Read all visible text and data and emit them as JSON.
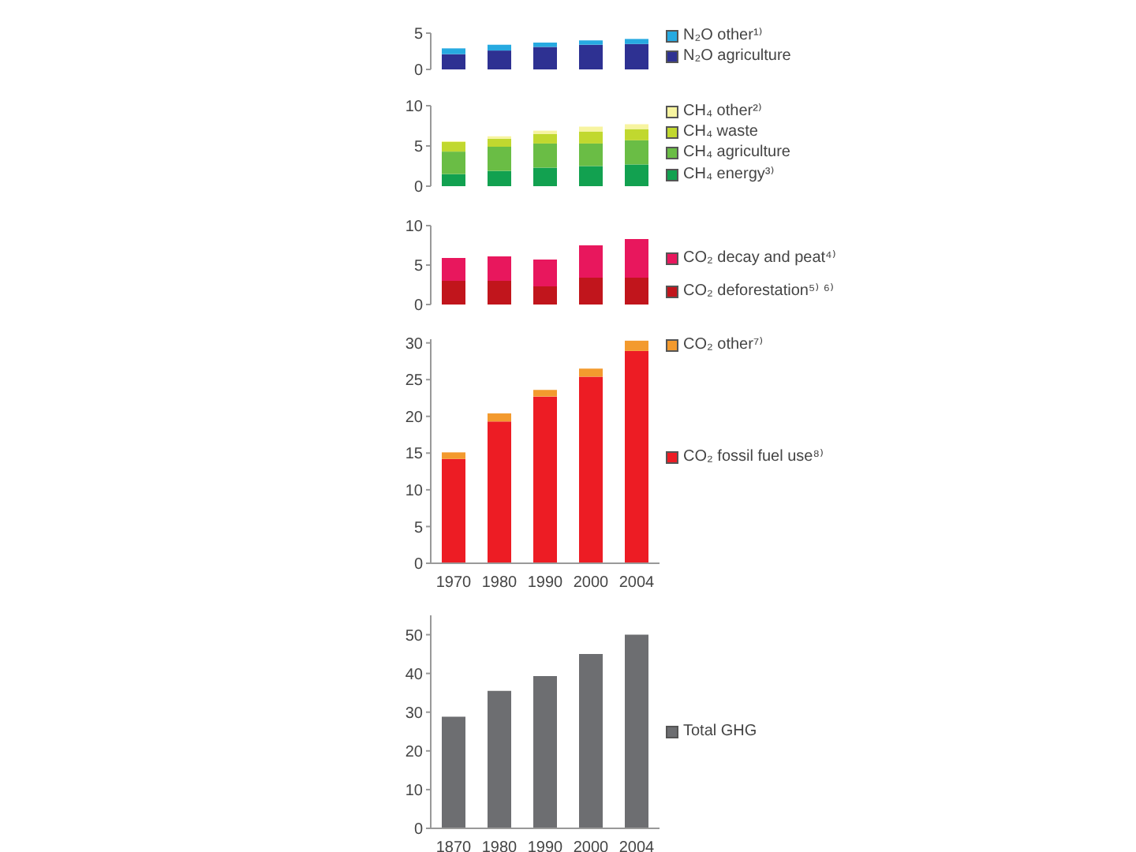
{
  "chart_data": [
    {
      "type": "bar",
      "stacked": true,
      "categories": [
        "1970",
        "1980",
        "1990",
        "2000",
        "2004"
      ],
      "tick_labels": "y",
      "ylim": [
        0,
        5
      ],
      "yticks": [
        0,
        5
      ],
      "legend": "right",
      "series": [
        {
          "name": "N₂O agriculture",
          "color": "#2e3192",
          "values": [
            2.1,
            2.6,
            3.1,
            3.4,
            3.5
          ]
        },
        {
          "name": "N₂O other¹⁾",
          "color": "#27aae1",
          "values": [
            0.8,
            0.8,
            0.6,
            0.6,
            0.7
          ]
        }
      ]
    },
    {
      "type": "bar",
      "stacked": true,
      "categories": [
        "1970",
        "1980",
        "1990",
        "2000",
        "2004"
      ],
      "tick_labels": "y",
      "ylim": [
        0,
        10
      ],
      "yticks": [
        0,
        5,
        10
      ],
      "legend": "right",
      "series": [
        {
          "name": "CH₄ energy³⁾",
          "color": "#12a150",
          "values": [
            1.5,
            1.9,
            2.3,
            2.5,
            2.7
          ]
        },
        {
          "name": "CH₄ agriculture",
          "color": "#6abd45",
          "values": [
            2.8,
            3.0,
            3.0,
            2.8,
            3.0
          ]
        },
        {
          "name": "CH₄ waste",
          "color": "#c1d82f",
          "values": [
            1.2,
            1.0,
            1.2,
            1.5,
            1.4
          ]
        },
        {
          "name": "CH₄ other²⁾",
          "color": "#f7f4a0",
          "values": [
            0.1,
            0.3,
            0.4,
            0.6,
            0.6
          ]
        }
      ]
    },
    {
      "type": "bar",
      "stacked": true,
      "categories": [
        "1970",
        "1980",
        "1990",
        "2000",
        "2004"
      ],
      "tick_labels": "y",
      "ylim": [
        0,
        10
      ],
      "yticks": [
        0,
        5,
        10
      ],
      "legend": "right",
      "series": [
        {
          "name": "CO₂ deforestation⁵⁾ ⁶⁾",
          "color": "#c1151c",
          "values": [
            3.0,
            3.0,
            2.3,
            3.4,
            3.4
          ]
        },
        {
          "name": "CO₂ decay and peat⁴⁾",
          "color": "#e8175d",
          "values": [
            2.9,
            3.1,
            3.4,
            4.1,
            4.9
          ]
        }
      ]
    },
    {
      "type": "bar",
      "stacked": true,
      "categories": [
        "1970",
        "1980",
        "1990",
        "2000",
        "2004"
      ],
      "ylim": [
        0,
        30.5
      ],
      "yticks": [
        0,
        5,
        10,
        15,
        20,
        25,
        30
      ],
      "legend": "right",
      "series": [
        {
          "name": "CO₂ fossil fuel use⁸⁾",
          "color": "#ed1c24",
          "values": [
            14.2,
            19.3,
            22.7,
            25.4,
            28.9
          ]
        },
        {
          "name": "CO₂ other⁷⁾",
          "color": "#f39a2e",
          "values": [
            0.9,
            1.1,
            0.9,
            1.1,
            1.4
          ]
        }
      ]
    },
    {
      "type": "bar",
      "categories": [
        "1870",
        "1980",
        "1990",
        "2000",
        "2004"
      ],
      "ylim": [
        0,
        55
      ],
      "yticks": [
        0,
        10,
        20,
        30,
        40,
        50
      ],
      "legend": "right",
      "series": [
        {
          "name": "Total GHG",
          "color": "#6d6e71",
          "values": [
            28.8,
            35.5,
            39.3,
            45.0,
            50.0
          ]
        }
      ]
    }
  ]
}
